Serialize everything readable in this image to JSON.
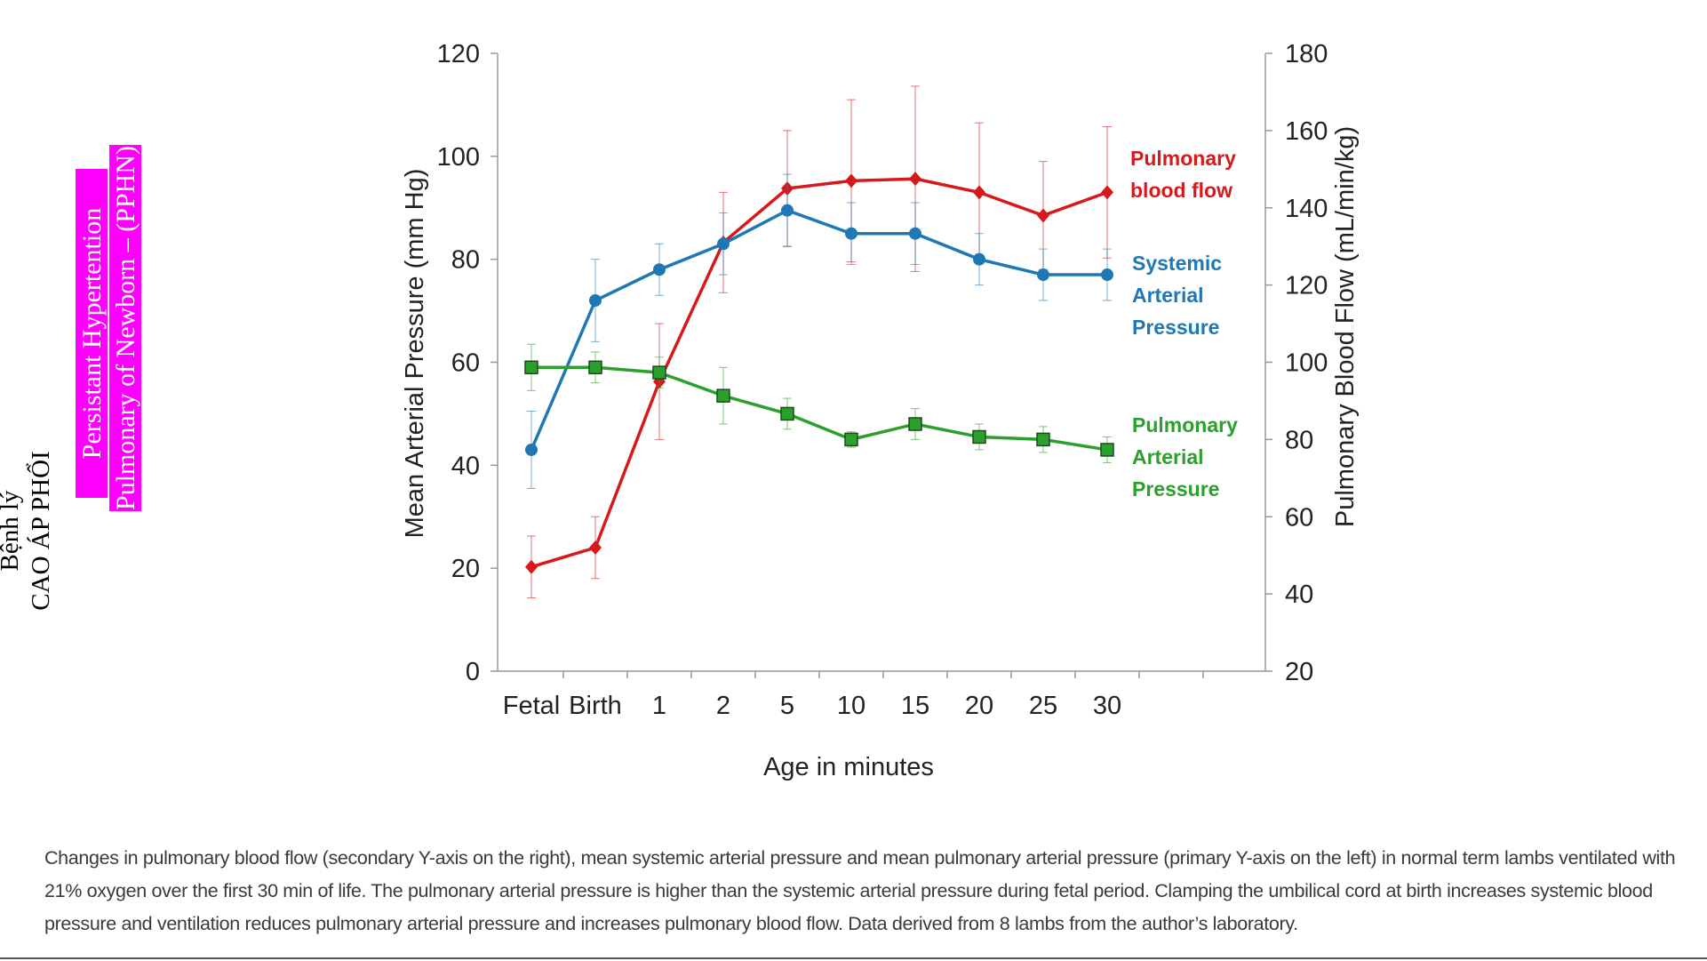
{
  "side_title": {
    "line1": "Bệnh lý",
    "line2": "CAO ÁP PHỔI",
    "line3": "Persistant Hypertention",
    "line4": "Pulmonary of Newborn – (PPHN)"
  },
  "caption": "Changes in pulmonary blood flow (secondary Y-axis on the right), mean systemic arterial pressure and mean pulmonary arterial pressure (primary Y-axis on the left) in normal term lambs ventilated with 21% oxygen over the first 30 min of life. The pulmonary arterial pressure is higher than the systemic arterial pressure during fetal period. Clamping the umbilical cord at birth increases systemic blood pressure and ventilation reduces pulmonary arterial pressure and increases pulmonary blood flow. Data derived from 8 lambs from the author’s laboratory.",
  "colors": {
    "pulmonary_blood_flow": "#d7191c",
    "systemic_arterial_pressure": "#1f78b4",
    "pulmonary_arterial_pressure": "#2ca02c",
    "highlight": "#ff00ff"
  },
  "chart_data": {
    "type": "line",
    "xlabel": "Age in minutes",
    "ylabel": "Mean  Arterial  Pressure  (mm Hg)",
    "y2label": "Pulmonary  Blood  Flow  (mL/min/kg)",
    "categories": [
      "Fetal",
      "Birth",
      "1",
      "2",
      "5",
      "10",
      "15",
      "20",
      "25",
      "30"
    ],
    "ylim": [
      0,
      120
    ],
    "yticks": [
      0,
      20,
      40,
      60,
      80,
      100,
      120
    ],
    "y2lim": [
      20,
      180
    ],
    "y2ticks": [
      20,
      40,
      60,
      80,
      100,
      120,
      140,
      160,
      180
    ],
    "series": [
      {
        "name": "Pulmonary blood flow",
        "label_lines": [
          "Pulmonary",
          "blood flow"
        ],
        "axis": "right",
        "marker": "diamond",
        "color": "#d7191c",
        "values": [
          47,
          52,
          95,
          131,
          145,
          147,
          147.5,
          144,
          138,
          144
        ],
        "error": [
          8,
          8,
          15,
          13,
          15,
          21,
          24,
          18,
          14,
          17
        ]
      },
      {
        "name": "Systemic Arterial Pressure",
        "label_lines": [
          "Systemic",
          "Arterial",
          "Pressure"
        ],
        "axis": "left",
        "marker": "circle",
        "color": "#1f78b4",
        "values": [
          43,
          72,
          78,
          83,
          89.5,
          85,
          85,
          80,
          77,
          77
        ],
        "error": [
          7.5,
          8,
          5,
          6,
          7,
          6,
          6,
          5,
          5,
          5
        ]
      },
      {
        "name": "Pulmonary Arterial Pressure",
        "label_lines": [
          "Pulmonary",
          "Arterial",
          "Pressure"
        ],
        "axis": "left",
        "marker": "square",
        "color": "#2ca02c",
        "values": [
          59,
          59,
          58,
          53.5,
          50,
          45,
          48,
          45.5,
          45,
          43
        ],
        "error": [
          4.5,
          3,
          3,
          5.5,
          3,
          1.5,
          3,
          2.5,
          2.5,
          2.5
        ]
      }
    ]
  }
}
